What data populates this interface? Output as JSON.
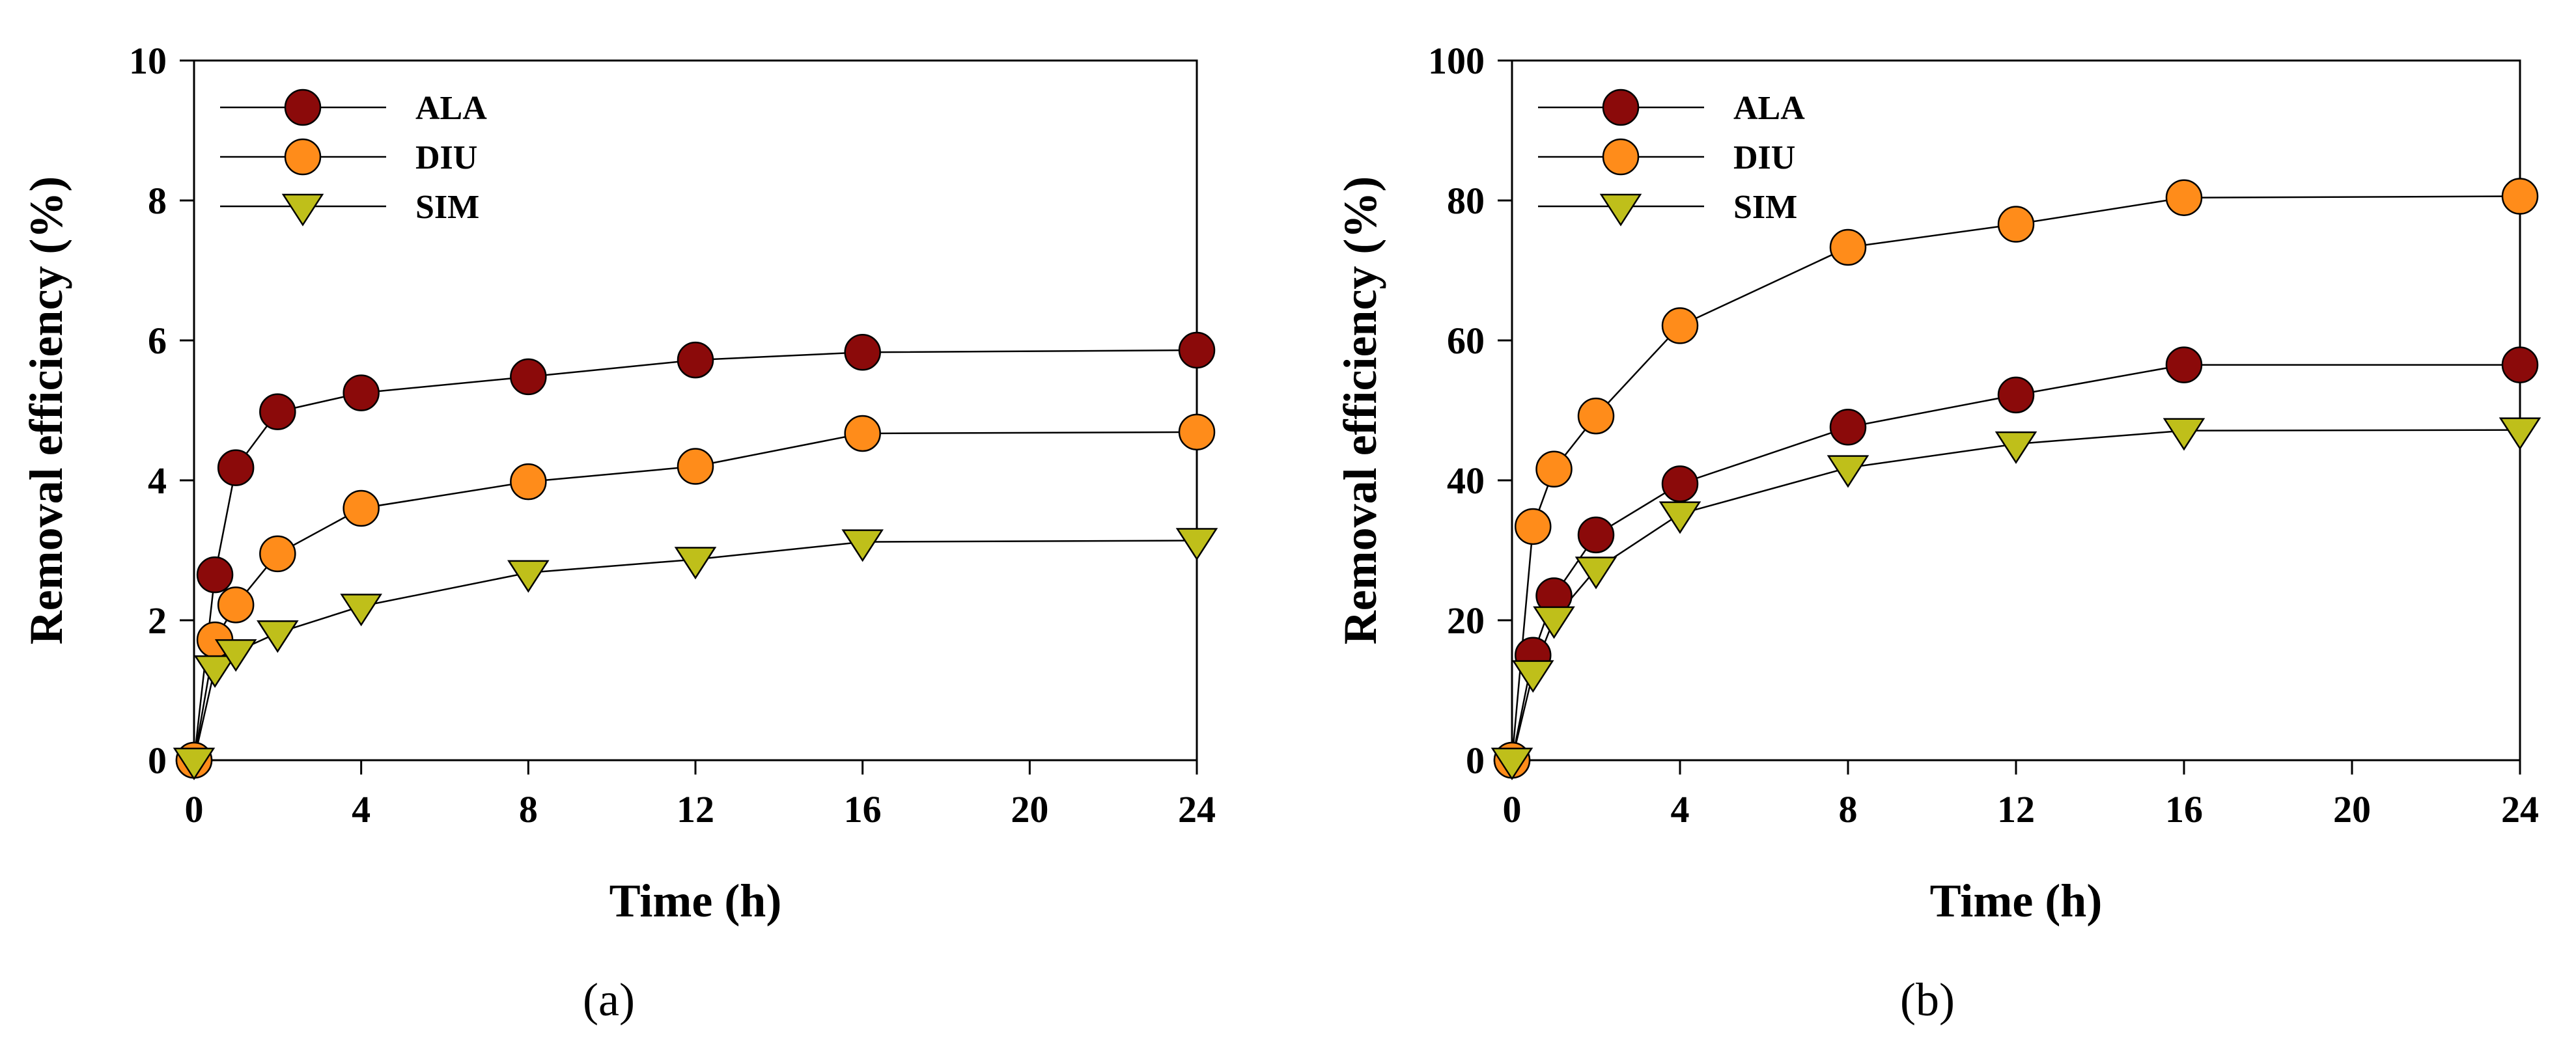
{
  "chart_data": [
    {
      "type": "line",
      "panel_label": "(a)",
      "xlabel": "Time (h)",
      "ylabel": "Removal efficiency (%)",
      "xlim": [
        0,
        24
      ],
      "ylim": [
        0,
        10
      ],
      "xticks": [
        "0",
        "4",
        "8",
        "12",
        "16",
        "20",
        "24"
      ],
      "yticks": [
        "0",
        "2",
        "4",
        "6",
        "8",
        "10"
      ],
      "xtick_values": [
        0,
        4,
        8,
        12,
        16,
        20,
        24
      ],
      "ytick_values": [
        0,
        2,
        4,
        6,
        8,
        10
      ],
      "legend_position": "top-left",
      "x": [
        0,
        0.5,
        1,
        2,
        4,
        8,
        12,
        16,
        24
      ],
      "series": [
        {
          "name": "ALA",
          "marker": "circle",
          "color": "#8B0A0A",
          "values": [
            0,
            2.65,
            4.18,
            4.98,
            5.25,
            5.48,
            5.72,
            5.83,
            5.86
          ]
        },
        {
          "name": "DIU",
          "marker": "circle",
          "color": "#FF8C1A",
          "values": [
            0,
            1.72,
            2.22,
            2.95,
            3.6,
            3.98,
            4.2,
            4.67,
            4.69
          ]
        },
        {
          "name": "SIM",
          "marker": "triangle-down",
          "color": "#BFBF1A",
          "values": [
            0,
            1.32,
            1.55,
            1.82,
            2.2,
            2.68,
            2.87,
            3.12,
            3.14
          ]
        }
      ]
    },
    {
      "type": "line",
      "panel_label": "(b)",
      "xlabel": "Time (h)",
      "ylabel": "Removal efficiency (%)",
      "xlim": [
        0,
        24
      ],
      "ylim": [
        0,
        100
      ],
      "xticks": [
        "0",
        "4",
        "8",
        "12",
        "16",
        "20",
        "24"
      ],
      "yticks": [
        "0",
        "20",
        "40",
        "60",
        "80",
        "100"
      ],
      "xtick_values": [
        0,
        4,
        8,
        12,
        16,
        20,
        24
      ],
      "ytick_values": [
        0,
        20,
        40,
        60,
        80,
        100
      ],
      "legend_position": "top-left",
      "x": [
        0,
        0.5,
        1,
        2,
        4,
        8,
        12,
        16,
        24
      ],
      "series": [
        {
          "name": "ALA",
          "marker": "circle",
          "color": "#8B0A0A",
          "values": [
            0,
            15.0,
            23.5,
            32.2,
            39.5,
            47.6,
            52.2,
            56.5,
            56.5
          ]
        },
        {
          "name": "DIU",
          "marker": "circle",
          "color": "#FF8C1A",
          "values": [
            0,
            33.4,
            41.6,
            49.2,
            62.1,
            73.3,
            76.6,
            80.4,
            80.6
          ]
        },
        {
          "name": "SIM",
          "marker": "triangle-down",
          "color": "#BFBF1A",
          "values": [
            0,
            12.5,
            20.2,
            27.3,
            35.2,
            41.8,
            45.2,
            47.1,
            47.2
          ]
        }
      ]
    }
  ]
}
